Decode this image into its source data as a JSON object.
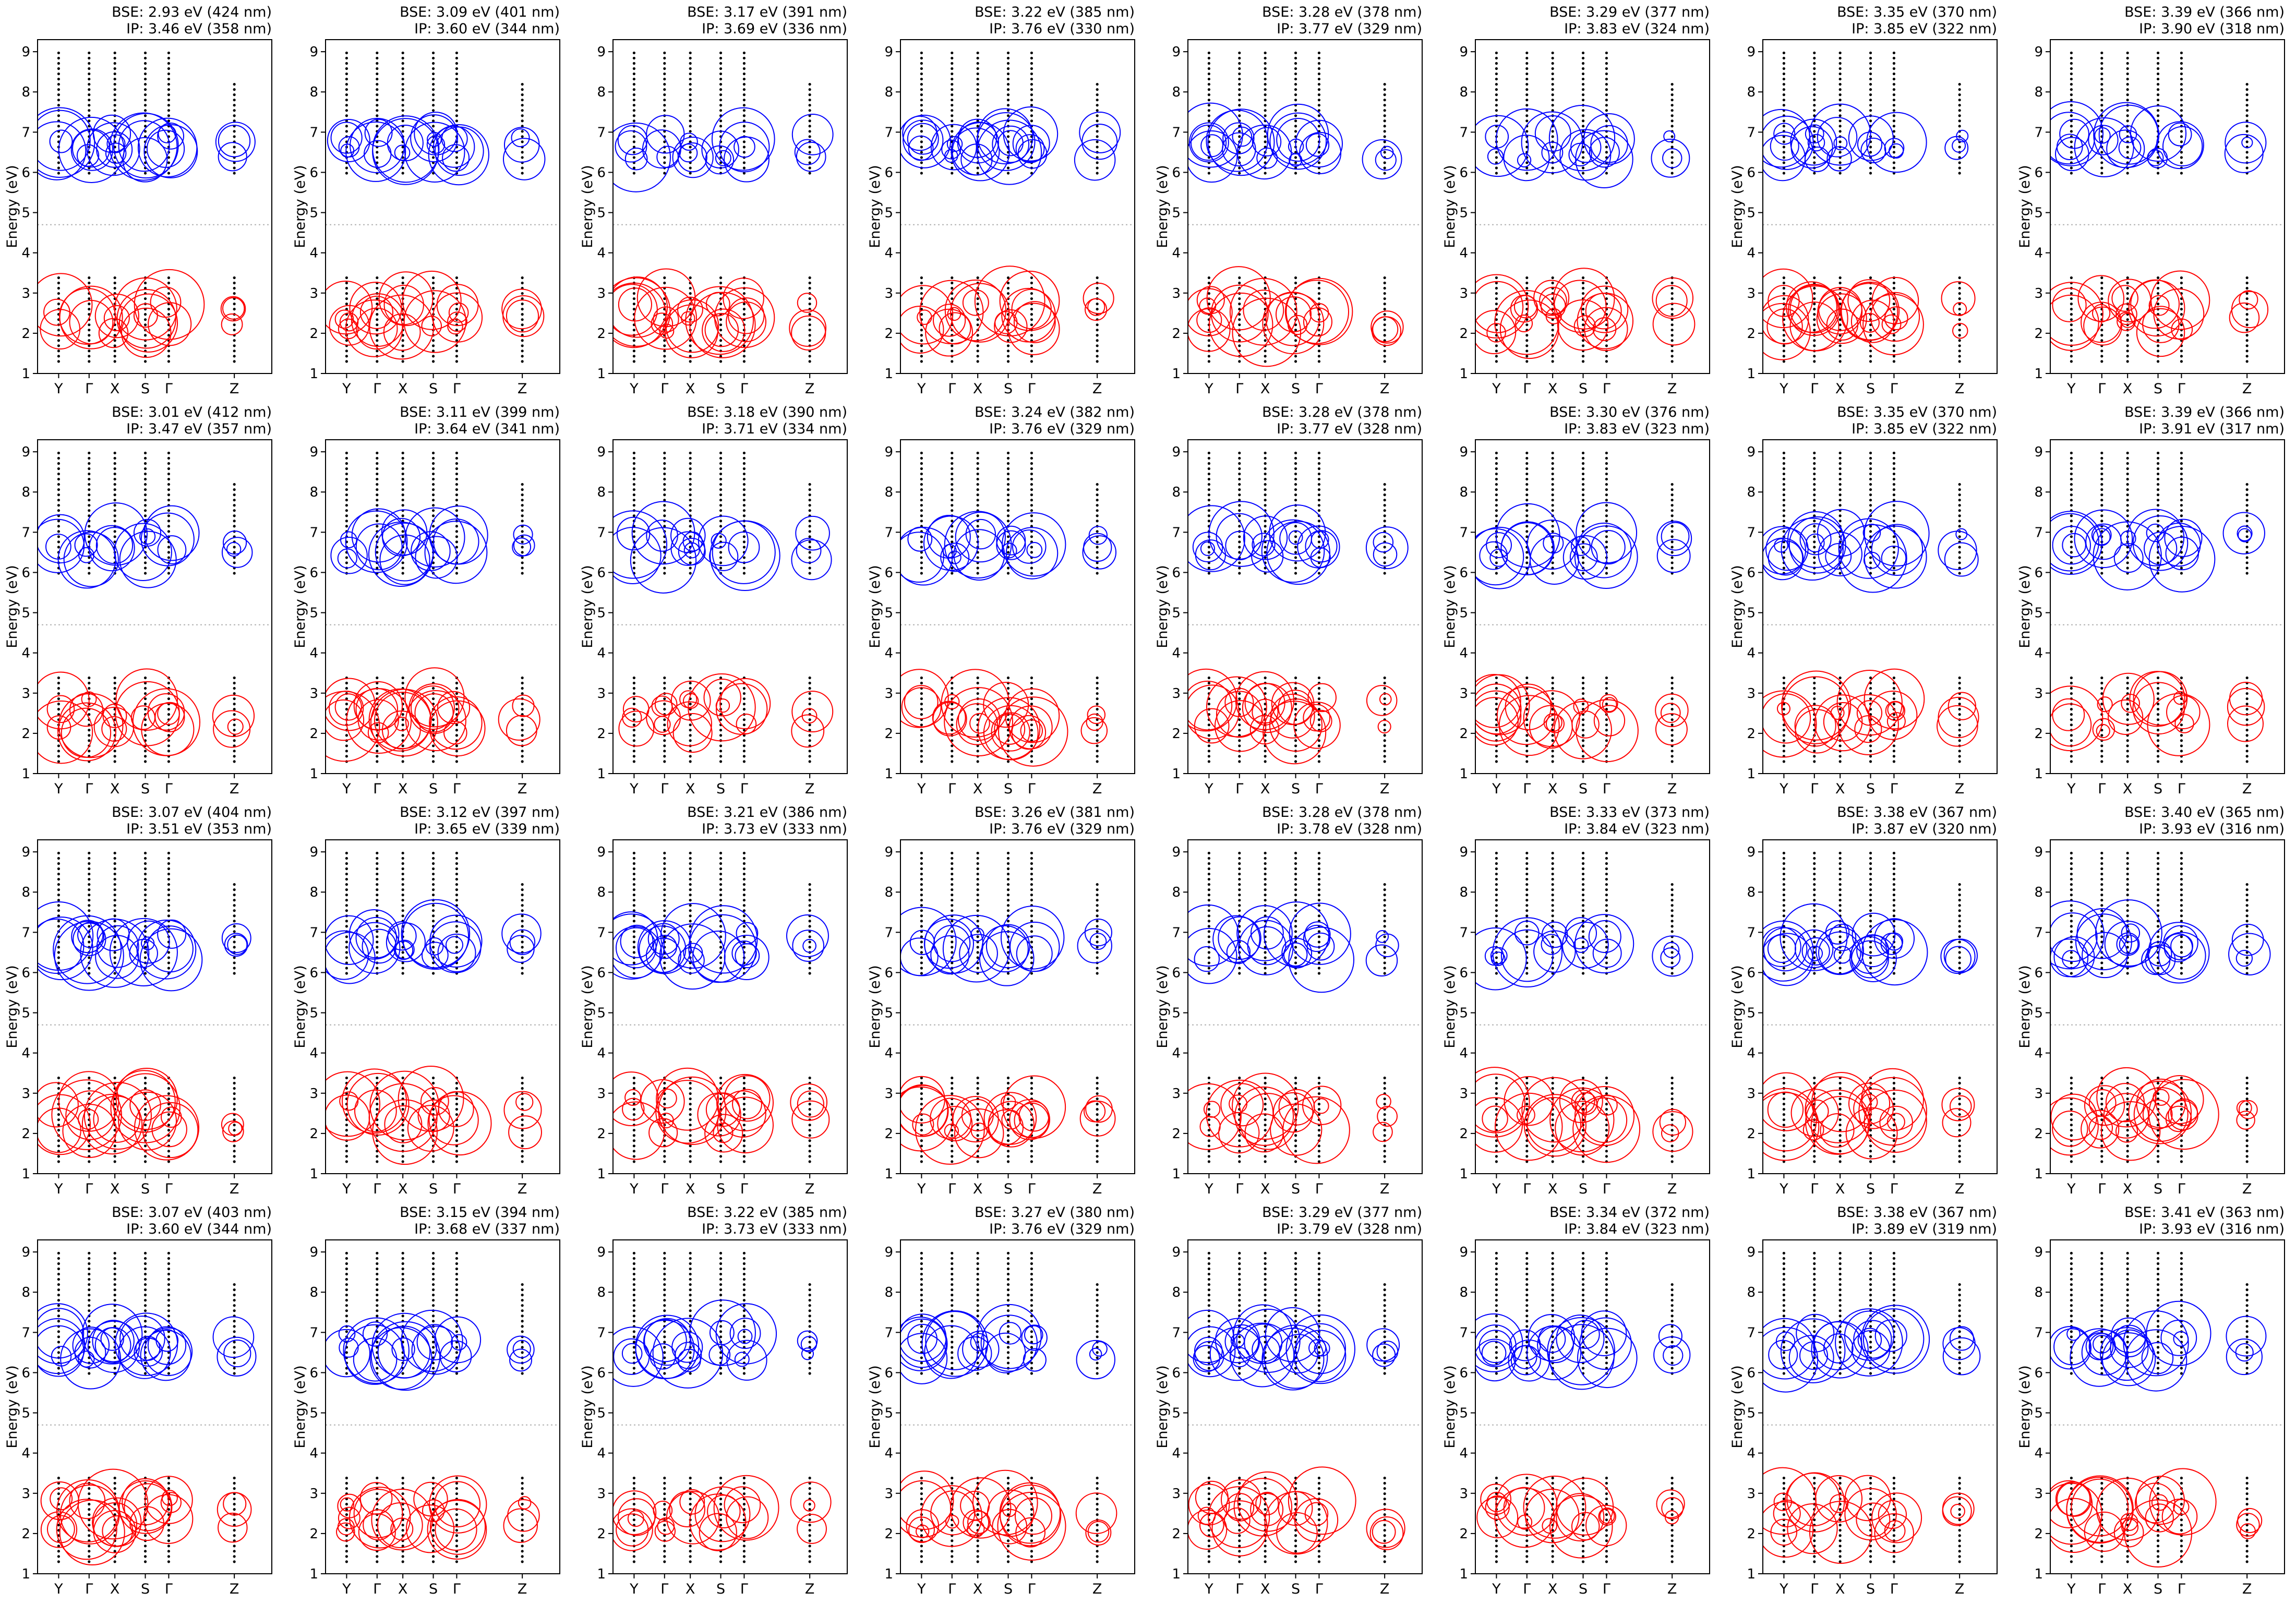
{
  "figure": {
    "ylabel": "Energy (eV)",
    "x_ticks": [
      "Y",
      "Γ",
      "X",
      "S",
      "Γ",
      "Z"
    ],
    "y_ticks": [
      "1",
      "2",
      "3",
      "4",
      "5",
      "6",
      "7",
      "8",
      "9"
    ],
    "colors": {
      "conduction": "#0000ff",
      "valence": "#ff0000",
      "points": "#000000",
      "fermi_line": "#b0b0b0"
    }
  },
  "chart_data": [
    {
      "bse": "BSE: 2.93 eV (424 nm)",
      "ip": "IP: 3.46 eV (358 nm)"
    },
    {
      "bse": "BSE: 3.09 eV (401 nm)",
      "ip": "IP: 3.60 eV (344 nm)"
    },
    {
      "bse": "BSE: 3.17 eV (391 nm)",
      "ip": "IP: 3.69 eV (336 nm)"
    },
    {
      "bse": "BSE: 3.22 eV (385 nm)",
      "ip": "IP: 3.76 eV (330 nm)"
    },
    {
      "bse": "BSE: 3.28 eV (378 nm)",
      "ip": "IP: 3.77 eV (329 nm)"
    },
    {
      "bse": "BSE: 3.29 eV (377 nm)",
      "ip": "IP: 3.83 eV (324 nm)"
    },
    {
      "bse": "BSE: 3.35 eV (370 nm)",
      "ip": "IP: 3.85 eV (322 nm)"
    },
    {
      "bse": "BSE: 3.39 eV (366 nm)",
      "ip": "IP: 3.90 eV (318 nm)"
    },
    {
      "bse": "BSE: 3.01 eV (412 nm)",
      "ip": "IP: 3.47 eV (357 nm)"
    },
    {
      "bse": "BSE: 3.11 eV (399 nm)",
      "ip": "IP: 3.64 eV (341 nm)"
    },
    {
      "bse": "BSE: 3.18 eV (390 nm)",
      "ip": "IP: 3.71 eV (334 nm)"
    },
    {
      "bse": "BSE: 3.24 eV (382 nm)",
      "ip": "IP: 3.76 eV (329 nm)"
    },
    {
      "bse": "BSE: 3.28 eV (378 nm)",
      "ip": "IP: 3.77 eV (328 nm)"
    },
    {
      "bse": "BSE: 3.30 eV (376 nm)",
      "ip": "IP: 3.83 eV (323 nm)"
    },
    {
      "bse": "BSE: 3.35 eV (370 nm)",
      "ip": "IP: 3.85 eV (322 nm)"
    },
    {
      "bse": "BSE: 3.39 eV (366 nm)",
      "ip": "IP: 3.91 eV (317 nm)"
    },
    {
      "bse": "BSE: 3.07 eV (404 nm)",
      "ip": "IP: 3.51 eV (353 nm)"
    },
    {
      "bse": "BSE: 3.12 eV (397 nm)",
      "ip": "IP: 3.65 eV (339 nm)"
    },
    {
      "bse": "BSE: 3.21 eV (386 nm)",
      "ip": "IP: 3.73 eV (333 nm)"
    },
    {
      "bse": "BSE: 3.26 eV (381 nm)",
      "ip": "IP: 3.76 eV (329 nm)"
    },
    {
      "bse": "BSE: 3.28 eV (378 nm)",
      "ip": "IP: 3.78 eV (328 nm)"
    },
    {
      "bse": "BSE: 3.33 eV (373 nm)",
      "ip": "IP: 3.84 eV (323 nm)"
    },
    {
      "bse": "BSE: 3.38 eV (367 nm)",
      "ip": "IP: 3.87 eV (320 nm)"
    },
    {
      "bse": "BSE: 3.40 eV (365 nm)",
      "ip": "IP: 3.93 eV (316 nm)"
    },
    {
      "bse": "BSE: 3.07 eV (403 nm)",
      "ip": "IP: 3.60 eV (344 nm)"
    },
    {
      "bse": "BSE: 3.15 eV (394 nm)",
      "ip": "IP: 3.68 eV (337 nm)"
    },
    {
      "bse": "BSE: 3.22 eV (385 nm)",
      "ip": "IP: 3.73 eV (333 nm)"
    },
    {
      "bse": "BSE: 3.27 eV (380 nm)",
      "ip": "IP: 3.76 eV (329 nm)"
    },
    {
      "bse": "BSE: 3.29 eV (377 nm)",
      "ip": "IP: 3.79 eV (328 nm)"
    },
    {
      "bse": "BSE: 3.34 eV (372 nm)",
      "ip": "IP: 3.84 eV (323 nm)"
    },
    {
      "bse": "BSE: 3.38 eV (367 nm)",
      "ip": "IP: 3.89 eV (319 nm)"
    },
    {
      "bse": "BSE: 3.41 eV (363 nm)",
      "ip": "IP: 3.93 eV (316 nm)"
    }
  ]
}
